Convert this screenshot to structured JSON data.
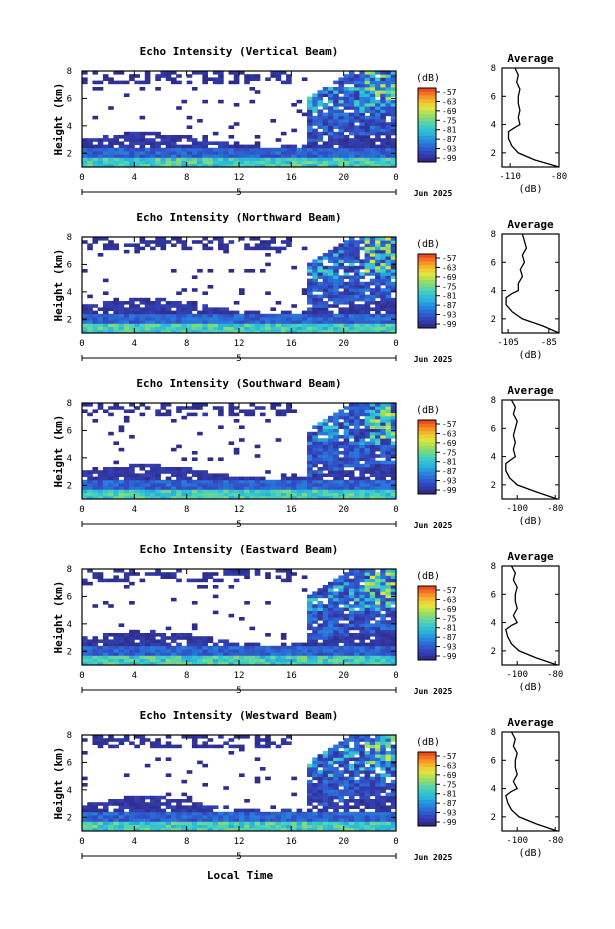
{
  "figure": {
    "xlabel": "Local Time",
    "date_label": "Jun 2025"
  },
  "chart_data": [
    {
      "type": "heatmap",
      "title": "Echo Intensity (Vertical Beam)",
      "ylabel": "Height (km)",
      "x_ticks": [
        "0",
        "4",
        "8",
        "12",
        "16",
        "20",
        "0"
      ],
      "x_day_marker": "5",
      "xlim": [
        0,
        24
      ],
      "y_ticks": [
        "2",
        "4",
        "6",
        "8"
      ],
      "ylim": [
        1,
        8
      ],
      "colorbar": {
        "unit": "(dB)",
        "ticks": [
          "-57",
          "-63",
          "-69",
          "-75",
          "-81",
          "-87",
          "-93",
          "-99"
        ],
        "range": [
          -99,
          -57
        ]
      },
      "profile": {
        "title": "Average",
        "xlabel": "(dB)",
        "x_ticks": [
          "-110",
          "-80"
        ],
        "xlim": [
          -115,
          -80
        ],
        "y_ticks": [
          "2",
          "4",
          "6",
          "8"
        ],
        "ylim": [
          1,
          8
        ],
        "heights": [
          1.0,
          1.5,
          2.0,
          2.5,
          3.0,
          3.5,
          3.8,
          4.0,
          4.5,
          5.0,
          5.5,
          6.0,
          6.5,
          7.0,
          7.5,
          8.0
        ],
        "values": [
          -80,
          -95,
          -105,
          -109,
          -111,
          -111,
          -107,
          -104,
          -105,
          -104,
          -105,
          -105,
          -104,
          -106,
          -105,
          -107
        ]
      }
    },
    {
      "type": "heatmap",
      "title": "Echo Intensity (Northward Beam)",
      "ylabel": "Height (km)",
      "x_ticks": [
        "0",
        "4",
        "8",
        "12",
        "16",
        "20",
        "0"
      ],
      "x_day_marker": "5",
      "xlim": [
        0,
        24
      ],
      "y_ticks": [
        "2",
        "4",
        "6",
        "8"
      ],
      "ylim": [
        1,
        8
      ],
      "colorbar": {
        "unit": "(dB)",
        "ticks": [
          "-57",
          "-63",
          "-69",
          "-75",
          "-81",
          "-87",
          "-93",
          "-99"
        ],
        "range": [
          -99,
          -57
        ]
      },
      "profile": {
        "title": "Average",
        "xlabel": "(dB)",
        "x_ticks": [
          "-105",
          "-85"
        ],
        "xlim": [
          -108,
          -80
        ],
        "y_ticks": [
          "2",
          "4",
          "6",
          "8"
        ],
        "ylim": [
          1,
          8
        ],
        "heights": [
          1.0,
          1.5,
          2.0,
          2.5,
          3.0,
          3.5,
          3.8,
          4.0,
          4.5,
          5.0,
          5.5,
          6.0,
          6.5,
          7.0,
          7.5,
          8.0
        ],
        "values": [
          -80,
          -88,
          -98,
          -103,
          -106,
          -106,
          -103,
          -100,
          -100,
          -98,
          -99,
          -97,
          -98,
          -96,
          -97,
          -98
        ]
      }
    },
    {
      "type": "heatmap",
      "title": "Echo Intensity (Southward Beam)",
      "ylabel": "Height (km)",
      "x_ticks": [
        "0",
        "4",
        "8",
        "12",
        "16",
        "20",
        "0"
      ],
      "x_day_marker": "5",
      "xlim": [
        0,
        24
      ],
      "y_ticks": [
        "2",
        "4",
        "6",
        "8"
      ],
      "ylim": [
        1,
        8
      ],
      "colorbar": {
        "unit": "(dB)",
        "ticks": [
          "-57",
          "-63",
          "-69",
          "-75",
          "-81",
          "-87",
          "-93",
          "-99"
        ],
        "range": [
          -99,
          -57
        ]
      },
      "profile": {
        "title": "Average",
        "xlabel": "(dB)",
        "x_ticks": [
          "-100",
          "-80"
        ],
        "xlim": [
          -108,
          -78
        ],
        "y_ticks": [
          "2",
          "4",
          "6",
          "8"
        ],
        "ylim": [
          1,
          8
        ],
        "heights": [
          1.0,
          1.5,
          2.0,
          2.5,
          3.0,
          3.5,
          3.8,
          4.0,
          4.5,
          5.0,
          5.5,
          6.0,
          6.5,
          7.0,
          7.5,
          8.0
        ],
        "values": [
          -79,
          -90,
          -100,
          -104,
          -106,
          -106,
          -103,
          -101,
          -102,
          -101,
          -102,
          -101,
          -100,
          -102,
          -101,
          -103
        ]
      }
    },
    {
      "type": "heatmap",
      "title": "Echo Intensity (Eastward Beam)",
      "ylabel": "Height (km)",
      "x_ticks": [
        "0",
        "4",
        "8",
        "12",
        "16",
        "20",
        "0"
      ],
      "x_day_marker": "5",
      "xlim": [
        0,
        24
      ],
      "y_ticks": [
        "2",
        "4",
        "6",
        "8"
      ],
      "ylim": [
        1,
        8
      ],
      "colorbar": {
        "unit": "(dB)",
        "ticks": [
          "-57",
          "-63",
          "-69",
          "-75",
          "-81",
          "-87",
          "-93",
          "-99"
        ],
        "range": [
          -99,
          -57
        ]
      },
      "profile": {
        "title": "Average",
        "xlabel": "(dB)",
        "x_ticks": [
          "-100",
          "-80"
        ],
        "xlim": [
          -108,
          -78
        ],
        "y_ticks": [
          "2",
          "4",
          "6",
          "8"
        ],
        "ylim": [
          1,
          8
        ],
        "heights": [
          1.0,
          1.5,
          2.0,
          2.5,
          3.0,
          3.5,
          3.8,
          4.0,
          4.5,
          5.0,
          5.5,
          6.0,
          6.5,
          7.0,
          7.5,
          8.0
        ],
        "values": [
          -79,
          -90,
          -99,
          -103,
          -105,
          -106,
          -103,
          -100,
          -102,
          -100,
          -101,
          -101,
          -100,
          -102,
          -101,
          -103
        ]
      }
    },
    {
      "type": "heatmap",
      "title": "Echo Intensity (Westward Beam)",
      "ylabel": "Height (km)",
      "x_ticks": [
        "0",
        "4",
        "8",
        "12",
        "16",
        "20",
        "0"
      ],
      "x_day_marker": "5",
      "xlim": [
        0,
        24
      ],
      "y_ticks": [
        "2",
        "4",
        "6",
        "8"
      ],
      "ylim": [
        1,
        8
      ],
      "colorbar": {
        "unit": "(dB)",
        "ticks": [
          "-57",
          "-63",
          "-69",
          "-75",
          "-81",
          "-87",
          "-93",
          "-99"
        ],
        "range": [
          -99,
          -57
        ]
      },
      "profile": {
        "title": "Average",
        "xlabel": "(dB)",
        "x_ticks": [
          "-100",
          "-80"
        ],
        "xlim": [
          -108,
          -78
        ],
        "y_ticks": [
          "2",
          "4",
          "6",
          "8"
        ],
        "ylim": [
          1,
          8
        ],
        "heights": [
          1.0,
          1.5,
          2.0,
          2.5,
          3.0,
          3.5,
          3.8,
          4.0,
          4.5,
          5.0,
          5.5,
          6.0,
          6.5,
          7.0,
          7.5,
          8.0
        ],
        "values": [
          -79,
          -90,
          -99,
          -103,
          -105,
          -106,
          -103,
          -100,
          -102,
          -100,
          -101,
          -101,
          -100,
          -102,
          -101,
          -103
        ]
      }
    }
  ]
}
